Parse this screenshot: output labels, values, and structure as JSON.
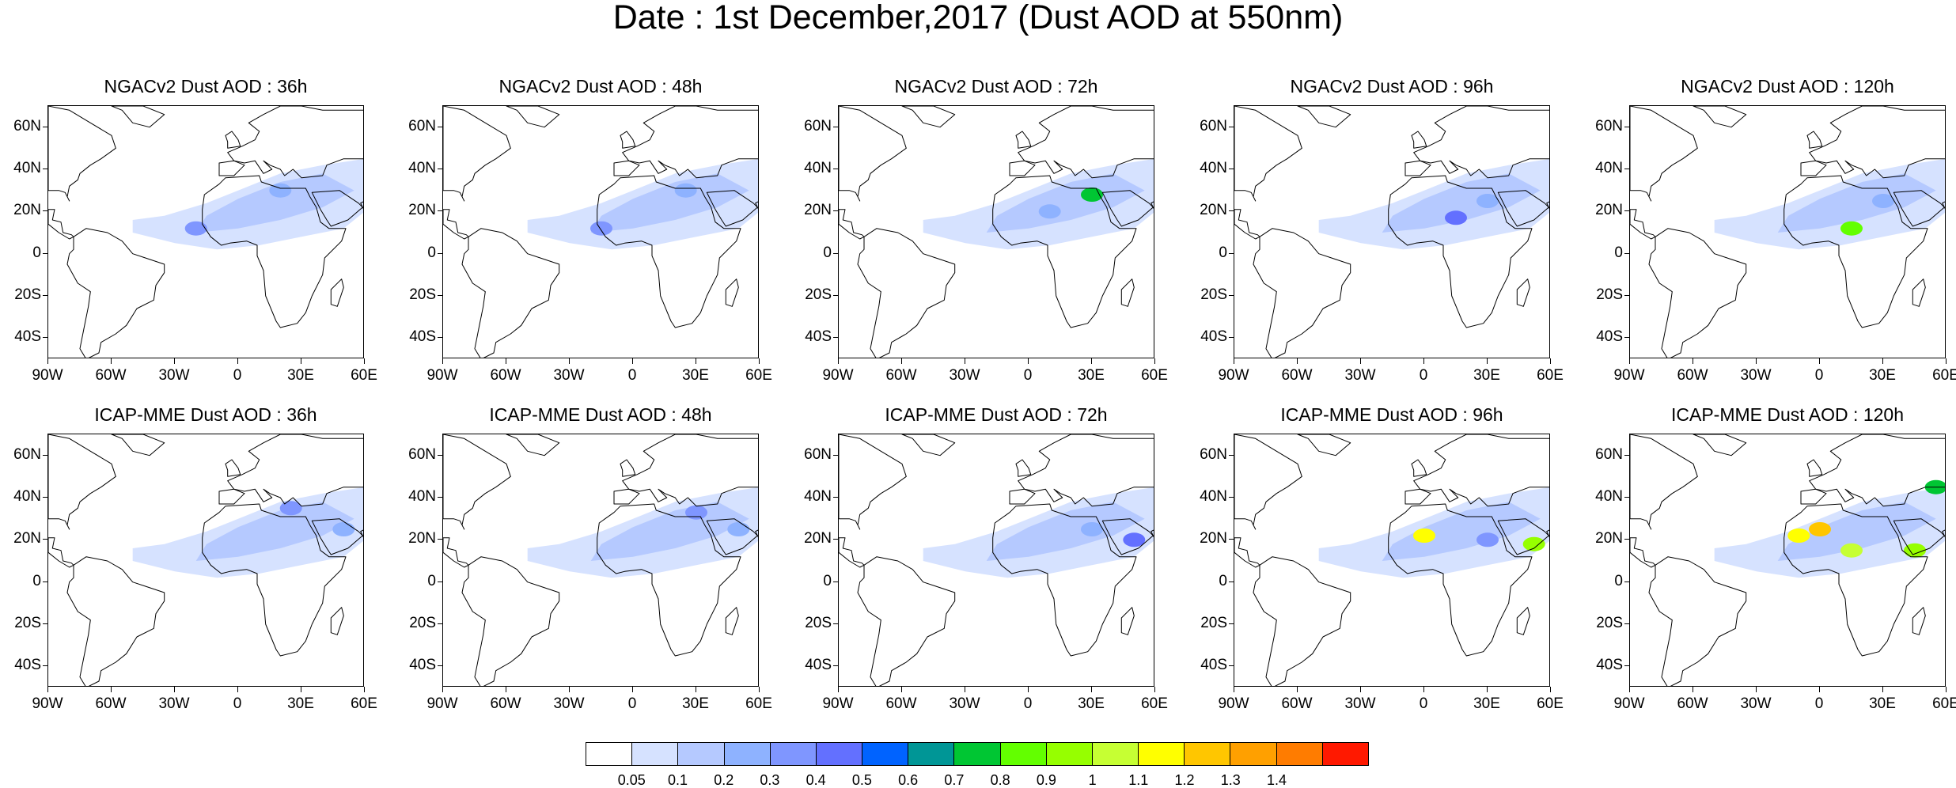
{
  "title": "Date : 1st December,2017 (Dust AOD at 550nm)",
  "lat_labels": [
    "60N",
    "40N",
    "20N",
    "0",
    "20S",
    "40S"
  ],
  "lon_labels": [
    "90W",
    "60W",
    "30W",
    "0",
    "30E",
    "60E"
  ],
  "rows": [
    {
      "model": "NGACv2",
      "panels": [
        {
          "title": "NGACv2 Dust AOD : 36h",
          "hotspots": [
            {
              "lon": -20,
              "lat": 12,
              "level": 4
            },
            {
              "lon": 20,
              "lat": 30,
              "level": 3
            }
          ]
        },
        {
          "title": "NGACv2 Dust AOD : 48h",
          "hotspots": [
            {
              "lon": -15,
              "lat": 12,
              "level": 4
            },
            {
              "lon": 25,
              "lat": 30,
              "level": 3
            }
          ]
        },
        {
          "title": "NGACv2 Dust AOD : 72h",
          "hotspots": [
            {
              "lon": 30,
              "lat": 28,
              "level": 8
            },
            {
              "lon": 10,
              "lat": 20,
              "level": 3
            }
          ]
        },
        {
          "title": "NGACv2 Dust AOD : 96h",
          "hotspots": [
            {
              "lon": 15,
              "lat": 17,
              "level": 5
            },
            {
              "lon": 30,
              "lat": 25,
              "level": 3
            }
          ]
        },
        {
          "title": "NGACv2 Dust AOD : 120h",
          "hotspots": [
            {
              "lon": 15,
              "lat": 12,
              "level": 9
            },
            {
              "lon": 30,
              "lat": 25,
              "level": 3
            }
          ]
        }
      ]
    },
    {
      "model": "ICAP-MME",
      "panels": [
        {
          "title": "ICAP-MME Dust AOD : 36h",
          "hotspots": [
            {
              "lon": 25,
              "lat": 35,
              "level": 4
            },
            {
              "lon": 50,
              "lat": 25,
              "level": 3
            }
          ]
        },
        {
          "title": "ICAP-MME Dust AOD : 48h",
          "hotspots": [
            {
              "lon": 30,
              "lat": 33,
              "level": 4
            },
            {
              "lon": 50,
              "lat": 25,
              "level": 3
            }
          ]
        },
        {
          "title": "ICAP-MME Dust AOD : 72h",
          "hotspots": [
            {
              "lon": 50,
              "lat": 20,
              "level": 5
            },
            {
              "lon": 30,
              "lat": 25,
              "level": 3
            }
          ]
        },
        {
          "title": "ICAP-MME Dust AOD : 96h",
          "hotspots": [
            {
              "lon": 0,
              "lat": 22,
              "level": 12
            },
            {
              "lon": 52,
              "lat": 18,
              "level": 10
            },
            {
              "lon": 30,
              "lat": 20,
              "level": 4
            }
          ]
        },
        {
          "title": "ICAP-MME Dust AOD : 120h",
          "hotspots": [
            {
              "lon": -10,
              "lat": 22,
              "level": 12
            },
            {
              "lon": 0,
              "lat": 25,
              "level": 13
            },
            {
              "lon": 15,
              "lat": 15,
              "level": 11
            },
            {
              "lon": 45,
              "lat": 15,
              "level": 10
            },
            {
              "lon": 55,
              "lat": 45,
              "level": 8
            }
          ]
        }
      ]
    }
  ],
  "colorbar": {
    "labels": [
      "0.05",
      "0.1",
      "0.2",
      "0.3",
      "0.4",
      "0.5",
      "0.6",
      "0.7",
      "0.8",
      "0.9",
      "1",
      "1.1",
      "1.2",
      "1.3",
      "1.4"
    ],
    "colors": [
      "#ffffff",
      "#d6e2ff",
      "#b5c9ff",
      "#8eb2ff",
      "#7f96ff",
      "#6370ff",
      "#0063ff",
      "#009696",
      "#00c633",
      "#63ff00",
      "#96ff00",
      "#c6ff33",
      "#ffff00",
      "#ffc600",
      "#ffa000",
      "#ff7c00",
      "#ff1900"
    ]
  }
}
